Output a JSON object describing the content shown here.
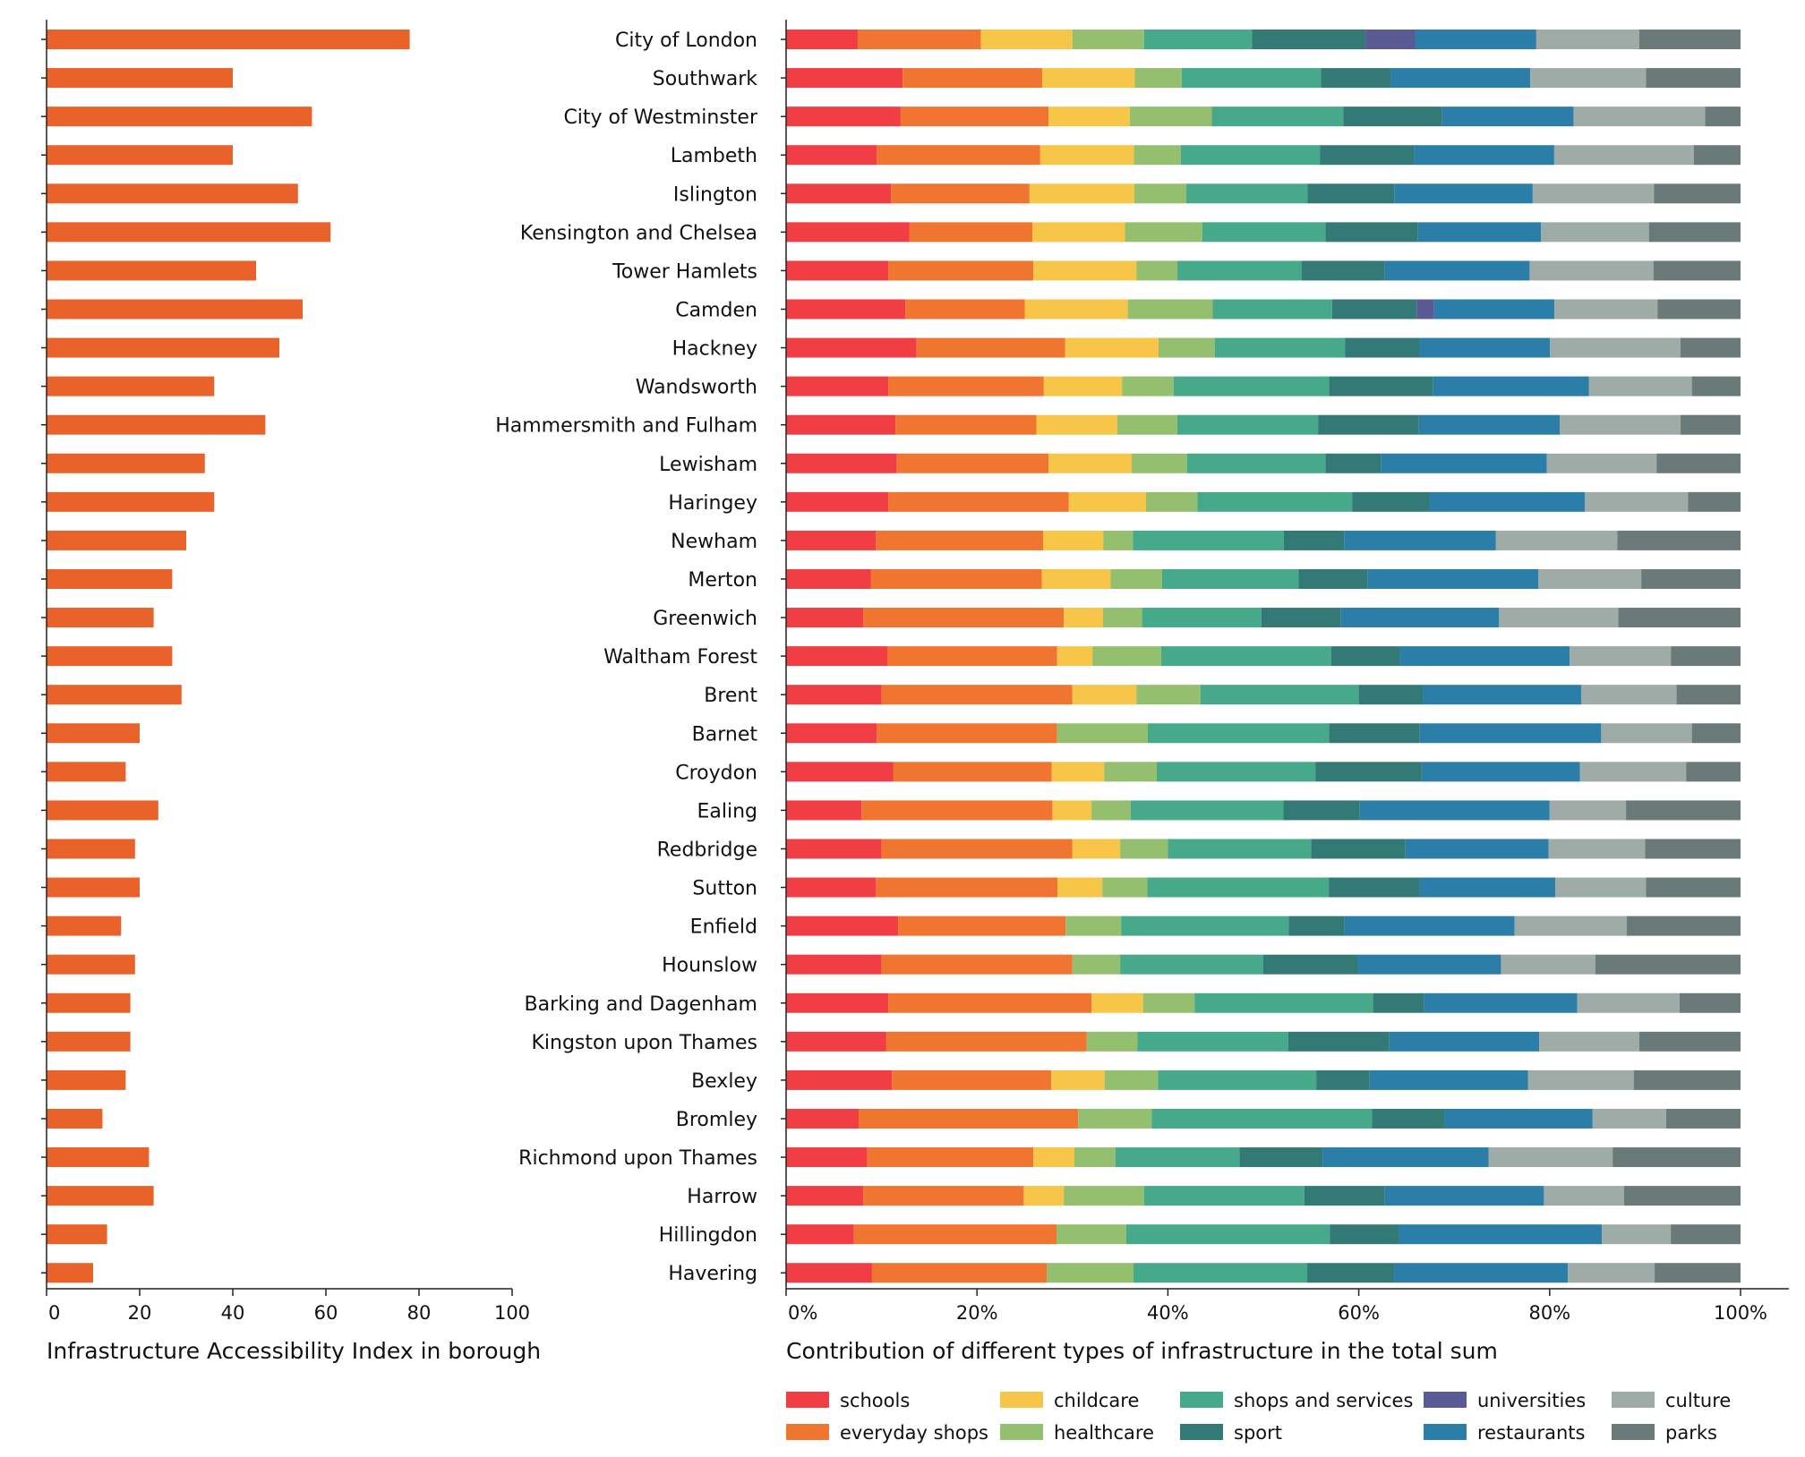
{
  "chart_data": [
    {
      "type": "bar",
      "orientation": "horizontal",
      "title": "Infrastructure Accessibility Index in borough",
      "xlim": [
        0,
        100
      ],
      "xticks": [
        0,
        20,
        40,
        60,
        80,
        100
      ],
      "bar_color": "#e8622a",
      "categories": [
        "City of London",
        "Southwark",
        "City of Westminster",
        "Lambeth",
        "Islington",
        "Kensington and Chelsea",
        "Tower Hamlets",
        "Camden",
        "Hackney",
        "Wandsworth",
        "Hammersmith and Fulham",
        "Lewisham",
        "Haringey",
        "Newham",
        "Merton",
        "Greenwich",
        "Waltham Forest",
        "Brent",
        "Barnet",
        "Croydon",
        "Ealing",
        "Redbridge",
        "Sutton",
        "Enfield",
        "Hounslow",
        "Barking and Dagenham",
        "Kingston upon Thames",
        "Bexley",
        "Bromley",
        "Richmond upon Thames",
        "Harrow",
        "Hillingdon",
        "Havering"
      ],
      "values": [
        78,
        40,
        57,
        40,
        54,
        61,
        45,
        55,
        50,
        36,
        47,
        34,
        36,
        30,
        27,
        23,
        27,
        29,
        20,
        17,
        24,
        19,
        20,
        16,
        19,
        18,
        18,
        17,
        12,
        22,
        23,
        13,
        10
      ]
    },
    {
      "type": "stacked-bar-percent",
      "orientation": "horizontal",
      "title": "Contribution of different types of infrastructure in the total sum",
      "xticks": [
        "0%",
        "20%",
        "40%",
        "60%",
        "80%",
        "100%"
      ],
      "legend_position": "bottom",
      "categories": [
        "City of London",
        "Southwark",
        "City of Westminster",
        "Lambeth",
        "Islington",
        "Kensington and Chelsea",
        "Tower Hamlets",
        "Camden",
        "Hackney",
        "Wandsworth",
        "Hammersmith and Fulham",
        "Lewisham",
        "Haringey",
        "Newham",
        "Merton",
        "Greenwich",
        "Waltham Forest",
        "Brent",
        "Barnet",
        "Croydon",
        "Ealing",
        "Redbridge",
        "Sutton",
        "Enfield",
        "Hounslow",
        "Barking and Dagenham",
        "Kingston upon Thames",
        "Bexley",
        "Bromley",
        "Richmond upon Thames",
        "Harrow",
        "Hillingdon",
        "Havering"
      ],
      "series": [
        {
          "name": "schools",
          "color": "#f03e44",
          "values": [
            7.5,
            12.2,
            12.0,
            9.5,
            10.9,
            12.9,
            10.7,
            12.5,
            13.7,
            10.7,
            11.5,
            11.6,
            10.7,
            9.4,
            8.9,
            8.1,
            10.6,
            10.0,
            9.5,
            11.2,
            7.9,
            10.0,
            9.4,
            11.7,
            10.0,
            10.7,
            10.5,
            11.1,
            7.6,
            8.5,
            8.1,
            7.1,
            9.0
          ]
        },
        {
          "name": "everyday shops",
          "color": "#f07530",
          "values": [
            12.9,
            14.6,
            15.5,
            17.1,
            14.4,
            12.9,
            15.2,
            12.5,
            15.6,
            16.3,
            14.8,
            15.9,
            18.9,
            17.5,
            17.9,
            21.0,
            17.8,
            20.0,
            18.9,
            16.6,
            20.0,
            20.0,
            19.0,
            17.5,
            20.0,
            21.3,
            21.0,
            16.7,
            23.0,
            17.4,
            16.8,
            21.2,
            18.3
          ]
        },
        {
          "name": "childcare",
          "color": "#f7c548",
          "values": [
            9.6,
            9.7,
            8.5,
            9.8,
            10.9,
            9.7,
            10.8,
            10.8,
            9.8,
            8.2,
            8.5,
            8.7,
            8.1,
            6.3,
            7.2,
            4.1,
            3.7,
            6.7,
            0,
            5.5,
            4.1,
            5.0,
            4.7,
            0,
            0,
            5.4,
            0,
            5.6,
            0,
            4.3,
            4.2,
            0,
            0
          ]
        },
        {
          "name": "healthcare",
          "color": "#93bf6e",
          "values": [
            7.5,
            4.9,
            8.6,
            4.9,
            5.4,
            8.1,
            4.3,
            8.9,
            5.9,
            5.4,
            6.3,
            5.8,
            5.4,
            3.1,
            5.4,
            4.1,
            7.2,
            6.7,
            9.5,
            5.5,
            4.1,
            5.0,
            4.7,
            5.8,
            5.0,
            5.4,
            5.3,
            5.6,
            7.7,
            4.3,
            8.4,
            7.3,
            9.1
          ]
        },
        {
          "name": "shops and services",
          "color": "#45a98a",
          "values": [
            11.3,
            14.6,
            13.8,
            14.6,
            12.6,
            12.9,
            13.0,
            12.5,
            13.7,
            16.3,
            14.8,
            14.5,
            16.2,
            15.8,
            14.3,
            12.5,
            17.8,
            16.6,
            19.0,
            16.6,
            16.0,
            15.0,
            19.0,
            17.5,
            15.0,
            18.7,
            15.8,
            16.6,
            23.1,
            13.0,
            16.8,
            21.3,
            18.2
          ]
        },
        {
          "name": "sport",
          "color": "#337a76",
          "values": [
            11.9,
            7.3,
            10.3,
            9.8,
            9.0,
            9.7,
            8.7,
            8.9,
            7.8,
            10.9,
            10.6,
            5.8,
            8.1,
            6.3,
            7.2,
            8.3,
            7.2,
            6.7,
            9.5,
            11.1,
            8.0,
            9.9,
            9.5,
            5.8,
            9.9,
            5.3,
            10.6,
            5.6,
            7.6,
            8.7,
            8.4,
            7.2,
            9.1
          ]
        },
        {
          "name": "universities",
          "color": "#5a5a94",
          "values": [
            5.2,
            0,
            0,
            0,
            0,
            0,
            0,
            1.8,
            0,
            0,
            0,
            0,
            0,
            0,
            0,
            0,
            0,
            0,
            0,
            0,
            0,
            0,
            0,
            0,
            0,
            0,
            0,
            0,
            0,
            0,
            0,
            0,
            0
          ]
        },
        {
          "name": "restaurants",
          "color": "#2b7ea7",
          "values": [
            12.7,
            14.6,
            13.8,
            14.7,
            14.4,
            12.9,
            15.2,
            12.6,
            13.7,
            16.3,
            14.8,
            17.4,
            16.3,
            15.9,
            17.9,
            16.6,
            17.8,
            16.6,
            19.0,
            16.6,
            19.9,
            15.0,
            14.2,
            17.8,
            15.0,
            16.1,
            15.7,
            16.6,
            15.5,
            17.4,
            16.7,
            21.3,
            18.2
          ]
        },
        {
          "name": "culture",
          "color": "#9eaba7",
          "values": [
            10.8,
            12.1,
            13.8,
            14.6,
            12.6,
            11.3,
            13.0,
            10.8,
            13.7,
            10.8,
            12.7,
            11.5,
            10.8,
            12.7,
            10.8,
            12.5,
            10.6,
            10.0,
            9.5,
            11.1,
            8.0,
            10.1,
            9.5,
            11.7,
            9.9,
            10.7,
            10.5,
            11.1,
            7.7,
            13.0,
            8.4,
            7.2,
            9.1
          ]
        },
        {
          "name": "parks",
          "color": "#6a7a78",
          "values": [
            10.6,
            9.9,
            3.7,
            4.9,
            9.0,
            9.6,
            9.1,
            8.7,
            6.3,
            5.1,
            6.3,
            8.8,
            5.5,
            12.9,
            10.4,
            12.8,
            7.3,
            6.7,
            5.1,
            5.7,
            12.0,
            10.0,
            9.9,
            11.9,
            15.2,
            6.4,
            10.6,
            11.2,
            7.8,
            13.4,
            12.2,
            7.3,
            9.0
          ]
        }
      ]
    }
  ]
}
